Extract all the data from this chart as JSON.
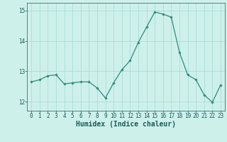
{
  "x": [
    0,
    1,
    2,
    3,
    4,
    5,
    6,
    7,
    8,
    9,
    10,
    11,
    12,
    13,
    14,
    15,
    16,
    17,
    18,
    19,
    20,
    21,
    22,
    23
  ],
  "y": [
    12.65,
    12.72,
    12.85,
    12.88,
    12.58,
    12.62,
    12.65,
    12.65,
    12.45,
    12.12,
    12.62,
    13.05,
    13.35,
    13.95,
    14.45,
    14.95,
    14.88,
    14.78,
    13.62,
    12.88,
    12.72,
    12.22,
    11.98,
    12.55
  ],
  "line_color": "#2e8b7a",
  "marker": "D",
  "marker_size": 1.8,
  "bg_color": "#cef0eb",
  "grid_color": "#a8ddd8",
  "tick_color": "#1a5c58",
  "label_color": "#1a5c58",
  "xlabel": "Humidex (Indice chaleur)",
  "ylim": [
    11.7,
    15.25
  ],
  "yticks": [
    12,
    13,
    14,
    15
  ],
  "xticks": [
    0,
    1,
    2,
    3,
    4,
    5,
    6,
    7,
    8,
    9,
    10,
    11,
    12,
    13,
    14,
    15,
    16,
    17,
    18,
    19,
    20,
    21,
    22,
    23
  ],
  "axis_fontsize": 6.5,
  "tick_fontsize": 5.5,
  "xlabel_fontsize": 7.0
}
